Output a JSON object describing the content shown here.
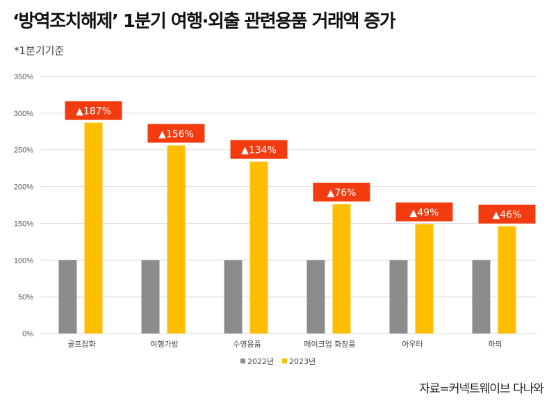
{
  "title": "‘방역조치해제’ 1분기 여행·외출 관련용품 거래액 증가",
  "subtitle": "*1분기기준",
  "source": "자료=커넥트웨이브 다나와",
  "colors": {
    "s2022": "#8c8c8c",
    "s2023": "#ffbf00",
    "label_bg": "#f23b0f",
    "grid": "#d9d9d9"
  },
  "chart_data": {
    "type": "bar",
    "categories": [
      "골프잡화",
      "여행가방",
      "수영용품",
      "메이크업 화장품",
      "아우터",
      "하의"
    ],
    "series": [
      {
        "name": "2022년",
        "values": [
          100,
          100,
          100,
          100,
          100,
          100
        ]
      },
      {
        "name": "2023년",
        "values": [
          287,
          256,
          234,
          176,
          149,
          146
        ]
      }
    ],
    "annotations": [
      "▲187%",
      "▲156%",
      "▲134%",
      "▲76%",
      "▲49%",
      "▲46%"
    ],
    "yticks": [
      "0%",
      "50%",
      "100%",
      "150%",
      "200%",
      "250%",
      "300%",
      "350%"
    ],
    "ylim": [
      0,
      350
    ],
    "grid": true,
    "legend": "bottom"
  }
}
